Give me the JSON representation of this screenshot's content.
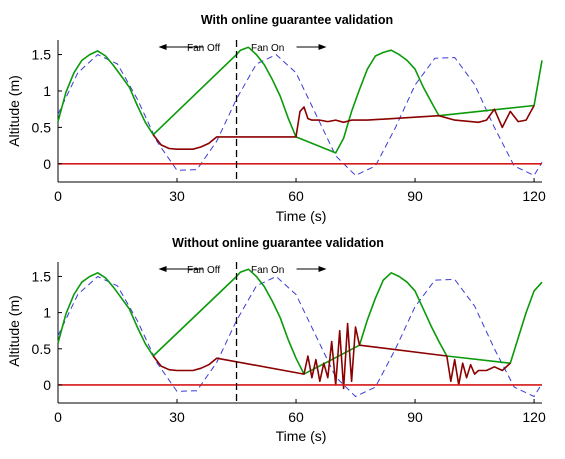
{
  "chart_data": [
    {
      "type": "line",
      "title": "With online guarantee validation",
      "xlabel": "Time (s)",
      "ylabel": "Altitude (m)",
      "xlim": [
        0,
        122
      ],
      "ylim": [
        -0.25,
        1.7
      ],
      "xticks": [
        "0",
        "30",
        "60",
        "90",
        "120"
      ],
      "yticks": [
        "0",
        "0.5",
        "1",
        "1.5"
      ],
      "grid": false,
      "legend": "none",
      "colors": {
        "reference": "#3b3bd6",
        "tracking": "#0a9a0a",
        "fan_on": "#8b0000",
        "ground": "#d61a1a",
        "marker": "#000000"
      },
      "annotations": {
        "fan_off": "Fan Off",
        "fan_on": "Fan On",
        "switch_time": 45
      },
      "series": [
        {
          "style": "dashed",
          "x": [
            0,
            5,
            10,
            15,
            20,
            25,
            30,
            35,
            40,
            45,
            50,
            55,
            60,
            65,
            70,
            75,
            80,
            85,
            90,
            95,
            100,
            105,
            110,
            115,
            120,
            122
          ],
          "values": [
            0.68,
            1.25,
            1.5,
            1.37,
            0.89,
            0.3,
            -0.09,
            -0.08,
            0.31,
            0.89,
            1.37,
            1.5,
            1.25,
            0.68,
            0.11,
            -0.16,
            -0.03,
            0.49,
            1.08,
            1.45,
            1.46,
            1.09,
            0.5,
            -0.03,
            -0.16,
            0.02
          ]
        },
        {
          "style": "solid",
          "x": [
            0,
            2,
            4,
            6,
            8,
            10,
            12,
            14,
            16,
            18,
            20,
            22,
            24,
            45,
            46,
            48,
            50,
            52,
            54,
            56,
            58,
            60,
            70,
            72,
            74,
            76,
            78,
            80,
            82,
            84,
            86,
            88,
            90,
            92,
            94,
            96,
            120,
            122
          ],
          "values": [
            0.58,
            0.98,
            1.25,
            1.42,
            1.5,
            1.55,
            1.48,
            1.35,
            1.2,
            1.05,
            0.8,
            0.57,
            0.4,
            1.5,
            1.56,
            1.6,
            1.5,
            1.36,
            1.16,
            0.93,
            0.63,
            0.37,
            0.15,
            0.35,
            0.72,
            1.02,
            1.3,
            1.48,
            1.53,
            1.56,
            1.5,
            1.42,
            1.3,
            1.06,
            0.86,
            0.66,
            0.8,
            1.42
          ]
        },
        {
          "style": "solid",
          "x": [
            24,
            26,
            28,
            30,
            32,
            34,
            36,
            38,
            40,
            60,
            61,
            62,
            63,
            64,
            66,
            68,
            70,
            72,
            74,
            76,
            78,
            96,
            100,
            104,
            106,
            108,
            110,
            112,
            114,
            116,
            118,
            120
          ],
          "values": [
            0.4,
            0.26,
            0.21,
            0.2,
            0.2,
            0.2,
            0.23,
            0.28,
            0.37,
            0.37,
            0.72,
            0.78,
            0.62,
            0.6,
            0.6,
            0.58,
            0.6,
            0.57,
            0.6,
            0.6,
            0.6,
            0.66,
            0.6,
            0.58,
            0.57,
            0.6,
            0.75,
            0.5,
            0.72,
            0.58,
            0.6,
            0.8
          ]
        },
        {
          "style": "solid",
          "x": [
            0,
            122
          ],
          "values": [
            0,
            0
          ]
        }
      ]
    },
    {
      "type": "line",
      "title": "Without online guarantee validation",
      "xlabel": "Time (s)",
      "ylabel": "Altitude (m)",
      "xlim": [
        0,
        122
      ],
      "ylim": [
        -0.25,
        1.7
      ],
      "xticks": [
        "0",
        "30",
        "60",
        "90",
        "120"
      ],
      "yticks": [
        "0",
        "0.5",
        "1",
        "1.5"
      ],
      "grid": false,
      "legend": "none",
      "colors": {
        "reference": "#3b3bd6",
        "tracking": "#0a9a0a",
        "fan_on": "#8b0000",
        "ground": "#d61a1a",
        "marker": "#000000"
      },
      "annotations": {
        "fan_off": "Fan Off",
        "fan_on": "Fan On",
        "switch_time": 45
      },
      "series": [
        {
          "style": "dashed",
          "x": [
            0,
            5,
            10,
            15,
            20,
            25,
            30,
            35,
            40,
            45,
            50,
            55,
            60,
            65,
            70,
            75,
            80,
            85,
            90,
            95,
            100,
            105,
            110,
            115,
            120,
            122
          ],
          "values": [
            0.68,
            1.25,
            1.5,
            1.37,
            0.89,
            0.3,
            -0.09,
            -0.08,
            0.31,
            0.89,
            1.37,
            1.5,
            1.25,
            0.68,
            0.11,
            -0.16,
            -0.03,
            0.49,
            1.08,
            1.45,
            1.46,
            1.09,
            0.5,
            -0.03,
            -0.16,
            0.02
          ]
        },
        {
          "style": "solid",
          "x": [
            0,
            2,
            4,
            6,
            8,
            10,
            12,
            14,
            16,
            18,
            20,
            22,
            24,
            45,
            46,
            48,
            50,
            52,
            54,
            56,
            58,
            60,
            62,
            76,
            78,
            80,
            82,
            84,
            86,
            88,
            90,
            92,
            94,
            96,
            98,
            114,
            116,
            118,
            120,
            122
          ],
          "values": [
            0.58,
            0.98,
            1.25,
            1.42,
            1.5,
            1.55,
            1.48,
            1.35,
            1.2,
            1.05,
            0.8,
            0.57,
            0.4,
            1.5,
            1.56,
            1.6,
            1.5,
            1.36,
            1.16,
            0.93,
            0.63,
            0.37,
            0.15,
            0.55,
            0.9,
            1.2,
            1.45,
            1.55,
            1.5,
            1.42,
            1.3,
            1.06,
            0.82,
            0.6,
            0.4,
            0.3,
            0.65,
            1.0,
            1.3,
            1.42
          ]
        },
        {
          "style": "solid",
          "x": [
            24,
            26,
            28,
            30,
            32,
            34,
            36,
            38,
            40,
            62,
            63,
            64,
            65,
            66,
            67,
            68,
            69,
            70,
            71,
            72,
            73,
            74,
            75,
            76,
            98,
            99,
            100,
            101,
            102,
            103,
            104,
            105,
            106,
            108,
            110,
            112,
            114
          ],
          "values": [
            0.4,
            0.26,
            0.21,
            0.2,
            0.2,
            0.2,
            0.23,
            0.28,
            0.37,
            0.15,
            0.4,
            0.1,
            0.35,
            0.05,
            0.3,
            0.1,
            0.6,
            0.0,
            0.75,
            -0.05,
            0.85,
            0.05,
            0.8,
            0.55,
            0.4,
            0.05,
            0.35,
            0.0,
            0.3,
            0.1,
            0.28,
            0.15,
            0.2,
            0.2,
            0.25,
            0.2,
            0.3
          ]
        },
        {
          "style": "solid",
          "x": [
            0,
            122
          ],
          "values": [
            0,
            0
          ]
        }
      ]
    }
  ]
}
